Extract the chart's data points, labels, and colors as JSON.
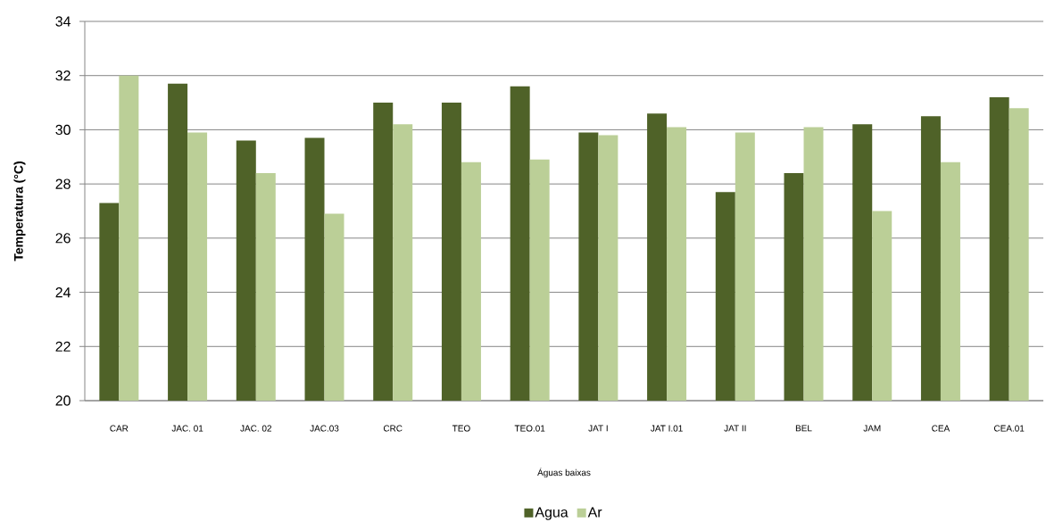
{
  "chart_data": {
    "type": "bar",
    "xlabel": "Águas baixas",
    "ylabel": "Temperatura (°C)",
    "categories": [
      "CAR",
      "JAC. 01",
      "JAC. 02",
      "JAC.03",
      "CRC",
      "TEO",
      "TEO.01",
      "JAT I",
      "JAT I.01",
      "JAT II",
      "BEL",
      "JAM",
      "CEA",
      "CEA.01"
    ],
    "series": [
      {
        "name": "Agua",
        "color": "#4f6228",
        "values": [
          27.3,
          31.7,
          29.6,
          29.7,
          31.0,
          31.0,
          31.6,
          29.9,
          30.6,
          27.7,
          28.4,
          30.2,
          30.5,
          31.2
        ]
      },
      {
        "name": "Ar",
        "color": "#bbcf97",
        "values": [
          32.0,
          29.9,
          28.4,
          26.9,
          30.2,
          28.8,
          28.9,
          29.8,
          30.1,
          29.9,
          30.1,
          27.0,
          28.8,
          30.8
        ]
      }
    ],
    "ylim": [
      20,
      34
    ],
    "yticks": [
      20,
      22,
      24,
      26,
      28,
      30,
      32,
      34
    ],
    "grid": "y",
    "legend": "bottom"
  }
}
